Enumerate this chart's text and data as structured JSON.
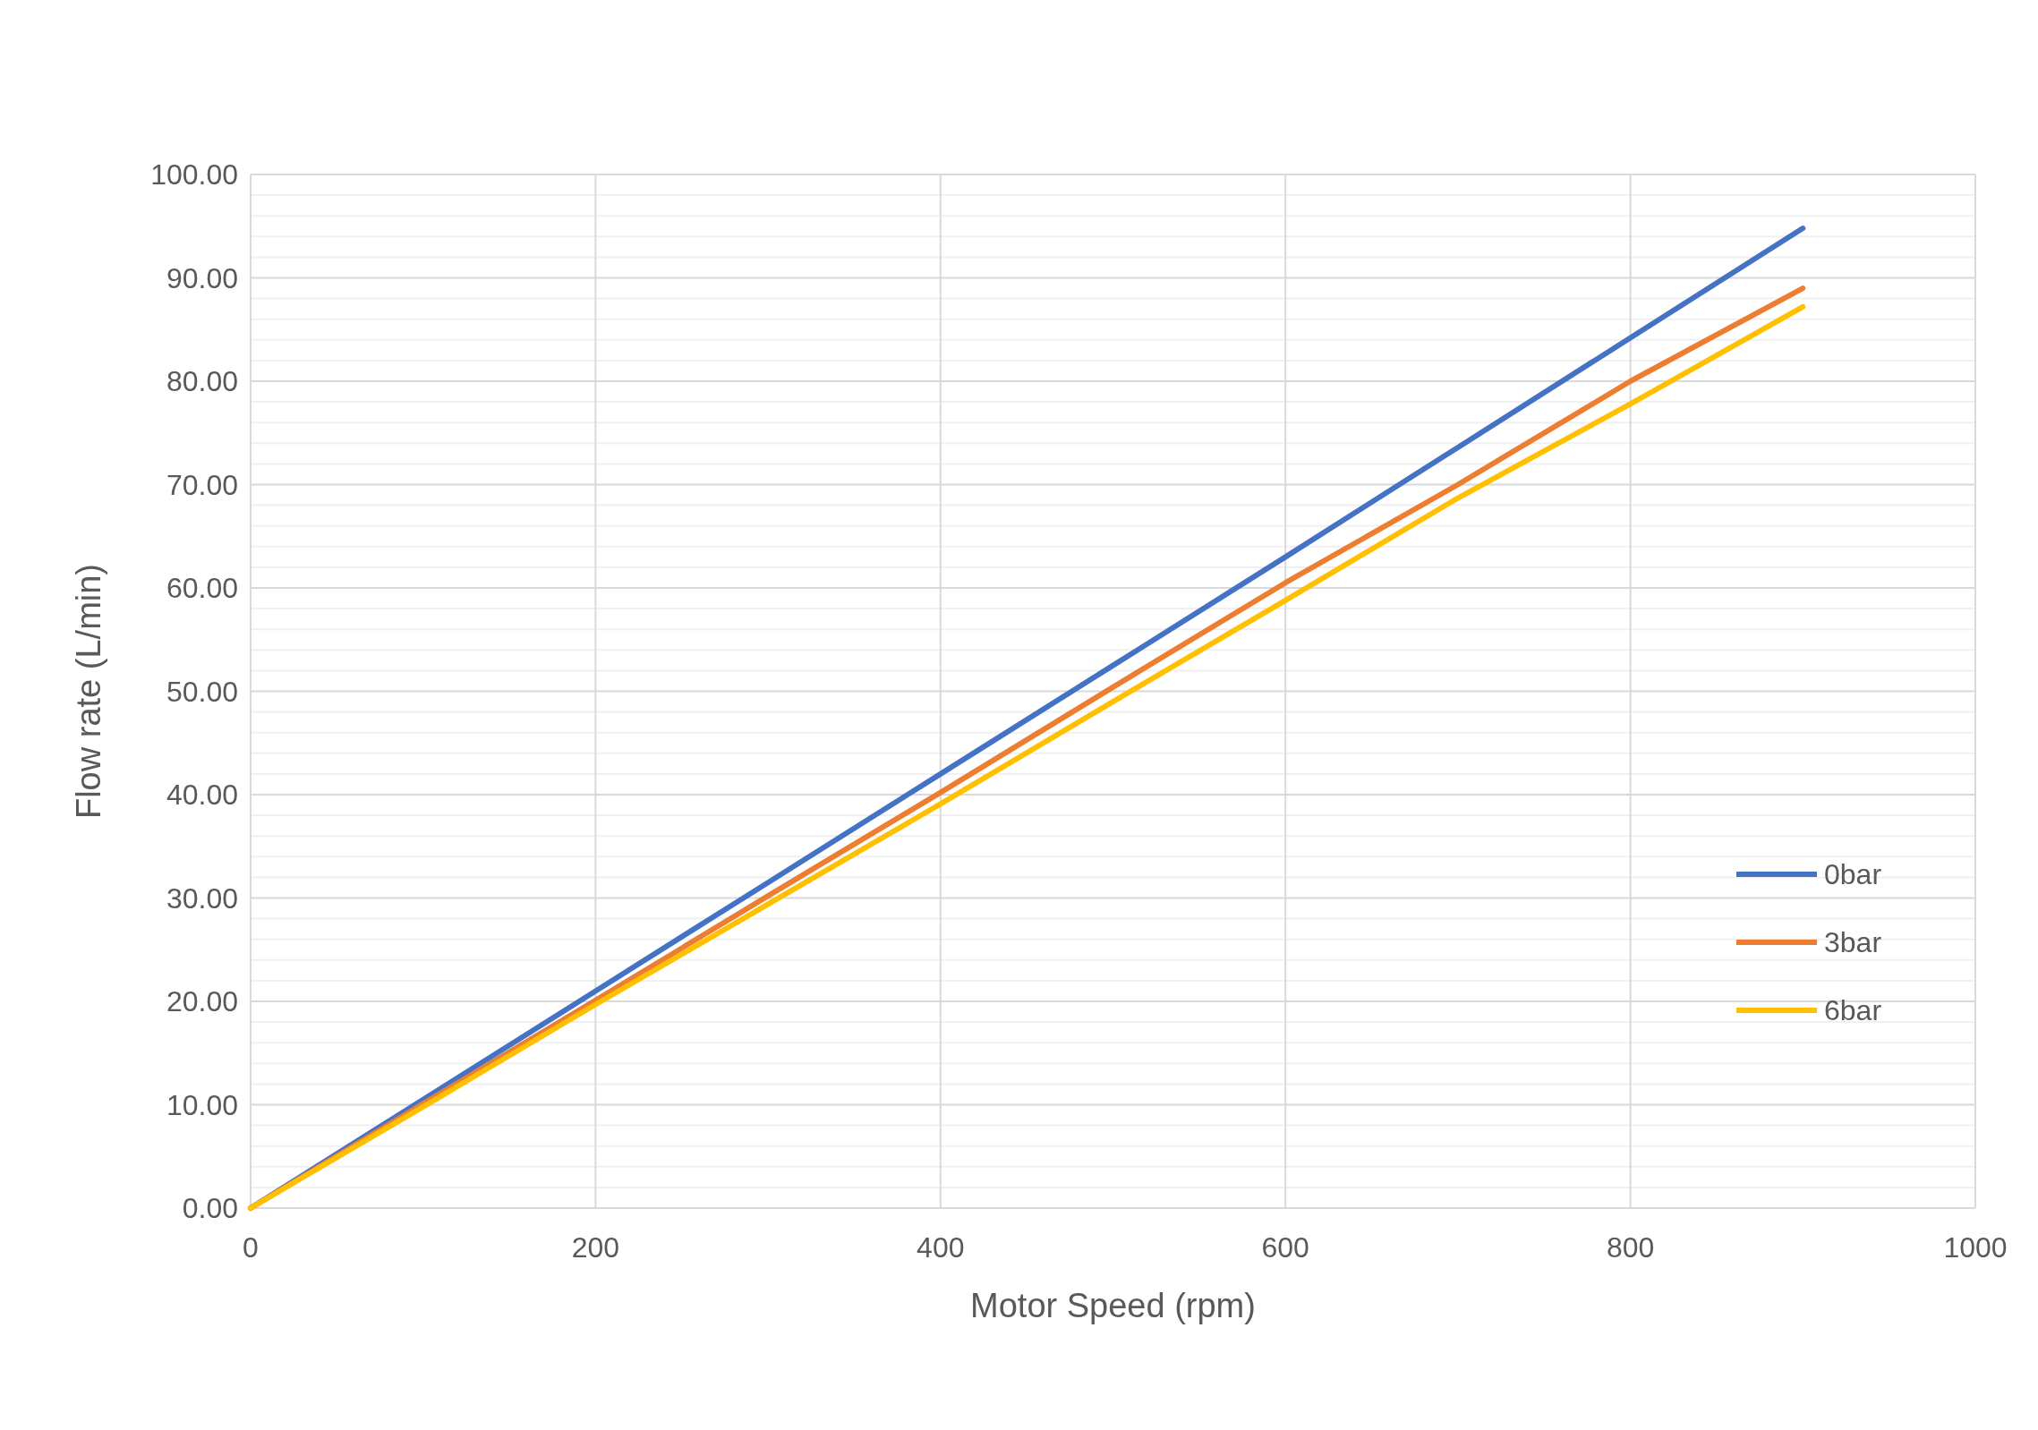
{
  "chart_data": {
    "type": "line",
    "xlabel": "Motor Speed (rpm)",
    "ylabel": "Flow rate (L/min)",
    "x": [
      0,
      100,
      200,
      300,
      400,
      500,
      600,
      700,
      800,
      900
    ],
    "series": [
      {
        "name": "0bar",
        "color": "#4472c4",
        "values": [
          0,
          10.5,
          21.0,
          31.5,
          42.0,
          52.5,
          63.0,
          73.6,
          84.2,
          94.8
        ]
      },
      {
        "name": "3bar",
        "color": "#ed7d31",
        "values": [
          0,
          10.1,
          20.1,
          30.2,
          40.2,
          50.4,
          60.5,
          70.0,
          80.0,
          89.0
        ]
      },
      {
        "name": "6bar",
        "color": "#ffc000",
        "values": [
          0,
          9.8,
          19.7,
          29.4,
          39.1,
          49.0,
          58.8,
          68.7,
          77.8,
          87.2
        ]
      }
    ],
    "xlim": [
      0,
      1000
    ],
    "xticks": [
      0,
      200,
      400,
      600,
      800,
      1000
    ],
    "ylim": [
      0,
      100
    ],
    "yticks": [
      {
        "value": 0,
        "label": "0.00"
      },
      {
        "value": 2,
        "label": null
      },
      {
        "value": 4,
        "label": null
      },
      {
        "value": 6,
        "label": null
      },
      {
        "value": 8,
        "label": null
      },
      {
        "value": 10,
        "label": "10.00"
      },
      {
        "value": 12,
        "label": null
      },
      {
        "value": 14,
        "label": null
      },
      {
        "value": 16,
        "label": null
      },
      {
        "value": 18,
        "label": null
      },
      {
        "value": 20,
        "label": "20.00"
      },
      {
        "value": 22,
        "label": null
      },
      {
        "value": 24,
        "label": null
      },
      {
        "value": 26,
        "label": null
      },
      {
        "value": 28,
        "label": null
      },
      {
        "value": 30,
        "label": "30.00"
      },
      {
        "value": 32,
        "label": null
      },
      {
        "value": 34,
        "label": null
      },
      {
        "value": 36,
        "label": null
      },
      {
        "value": 38,
        "label": null
      },
      {
        "value": 40,
        "label": "40.00"
      },
      {
        "value": 42,
        "label": null
      },
      {
        "value": 44,
        "label": null
      },
      {
        "value": 46,
        "label": null
      },
      {
        "value": 48,
        "label": null
      },
      {
        "value": 50,
        "label": "50.00"
      },
      {
        "value": 52,
        "label": null
      },
      {
        "value": 54,
        "label": null
      },
      {
        "value": 56,
        "label": null
      },
      {
        "value": 58,
        "label": null
      },
      {
        "value": 60,
        "label": "60.00"
      },
      {
        "value": 62,
        "label": null
      },
      {
        "value": 64,
        "label": null
      },
      {
        "value": 66,
        "label": null
      },
      {
        "value": 68,
        "label": null
      },
      {
        "value": 70,
        "label": "70.00"
      },
      {
        "value": 72,
        "label": null
      },
      {
        "value": 74,
        "label": null
      },
      {
        "value": 76,
        "label": null
      },
      {
        "value": 78,
        "label": null
      },
      {
        "value": 80,
        "label": "80.00"
      },
      {
        "value": 82,
        "label": null
      },
      {
        "value": 84,
        "label": null
      },
      {
        "value": 86,
        "label": null
      },
      {
        "value": 88,
        "label": null
      },
      {
        "value": 90,
        "label": "90.00"
      },
      {
        "value": 92,
        "label": null
      },
      {
        "value": 94,
        "label": null
      },
      {
        "value": 96,
        "label": null
      },
      {
        "value": 98,
        "label": null
      },
      {
        "value": 100,
        "label": "100.00"
      }
    ],
    "grid": true,
    "legend": "right",
    "marker": "none",
    "line_style": "solid"
  }
}
